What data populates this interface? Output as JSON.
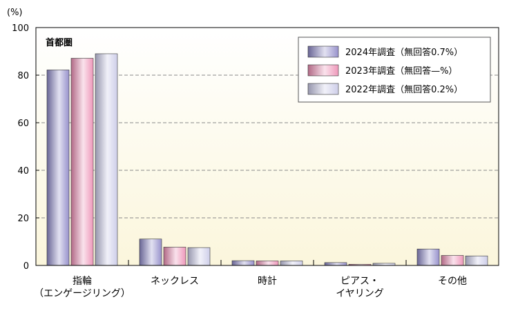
{
  "chart_data": {
    "type": "bar",
    "region_label": "首都圏",
    "y_unit": "(%)",
    "ylim": [
      0,
      100
    ],
    "yticks": [
      0,
      20,
      40,
      60,
      80,
      100
    ],
    "grid": "horizontal dashed",
    "legend_position": "top-right",
    "categories": [
      [
        "指輪",
        "（エンゲージリング）"
      ],
      [
        "ネックレス"
      ],
      [
        "時計"
      ],
      [
        "ピアス・",
        "イヤリング"
      ],
      [
        "その他"
      ]
    ],
    "series": [
      {
        "name": "2024年調査（無回答0.7%）",
        "values": [
          82.2,
          11.1,
          2.0,
          1.2,
          6.9
        ],
        "color": "#8c86c6"
      },
      {
        "name": "2023年調査（無回答—%）",
        "values": [
          87.1,
          7.7,
          1.9,
          0.5,
          4.2
        ],
        "color": "#ec8cb2"
      },
      {
        "name": "2022年調査（無回答0.2%）",
        "values": [
          89.0,
          7.5,
          1.9,
          0.9,
          4.0
        ],
        "color": "#c8c8e6"
      }
    ],
    "colors": {
      "plot_bg_top": "#ffffff",
      "plot_bg_bottom": "#fbf6dc",
      "grid": "#888888",
      "axis": "#000000"
    }
  }
}
